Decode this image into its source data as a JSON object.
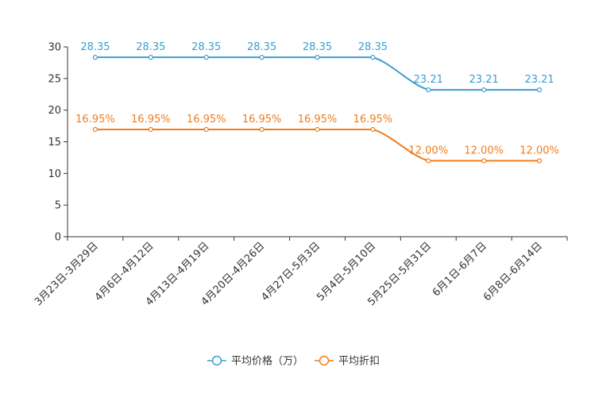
{
  "chart_data": {
    "type": "line",
    "categories": [
      "3月23日-3月29日",
      "4月6日-4月12日",
      "4月13日-4月19日",
      "4月20日-4月26日",
      "4月27日-5月3日",
      "5月4日-5月10日",
      "5月25日-5月31日",
      "6月1日-6月7日",
      "6月8日-6月14日"
    ],
    "ylim": [
      0,
      30
    ],
    "yticks": [
      0,
      5,
      10,
      15,
      20,
      25,
      30
    ],
    "series": [
      {
        "name": "平均价格（万）",
        "color": "#3a9fd0",
        "values": [
          28.35,
          28.35,
          28.35,
          28.35,
          28.35,
          28.35,
          23.21,
          23.21,
          23.21
        ],
        "labels": [
          "28.35",
          "28.35",
          "28.35",
          "28.35",
          "28.35",
          "28.35",
          "23.21",
          "23.21",
          "23.21"
        ]
      },
      {
        "name": "平均折扣",
        "color": "#f07c1c",
        "values": [
          16.95,
          16.95,
          16.95,
          16.95,
          16.95,
          16.95,
          12.0,
          12.0,
          12.0
        ],
        "labels": [
          "16.95%",
          "16.95%",
          "16.95%",
          "16.95%",
          "16.95%",
          "16.95%",
          "12.00%",
          "12.00%",
          "12.00%"
        ]
      }
    ],
    "legend_position": "bottom-center"
  }
}
